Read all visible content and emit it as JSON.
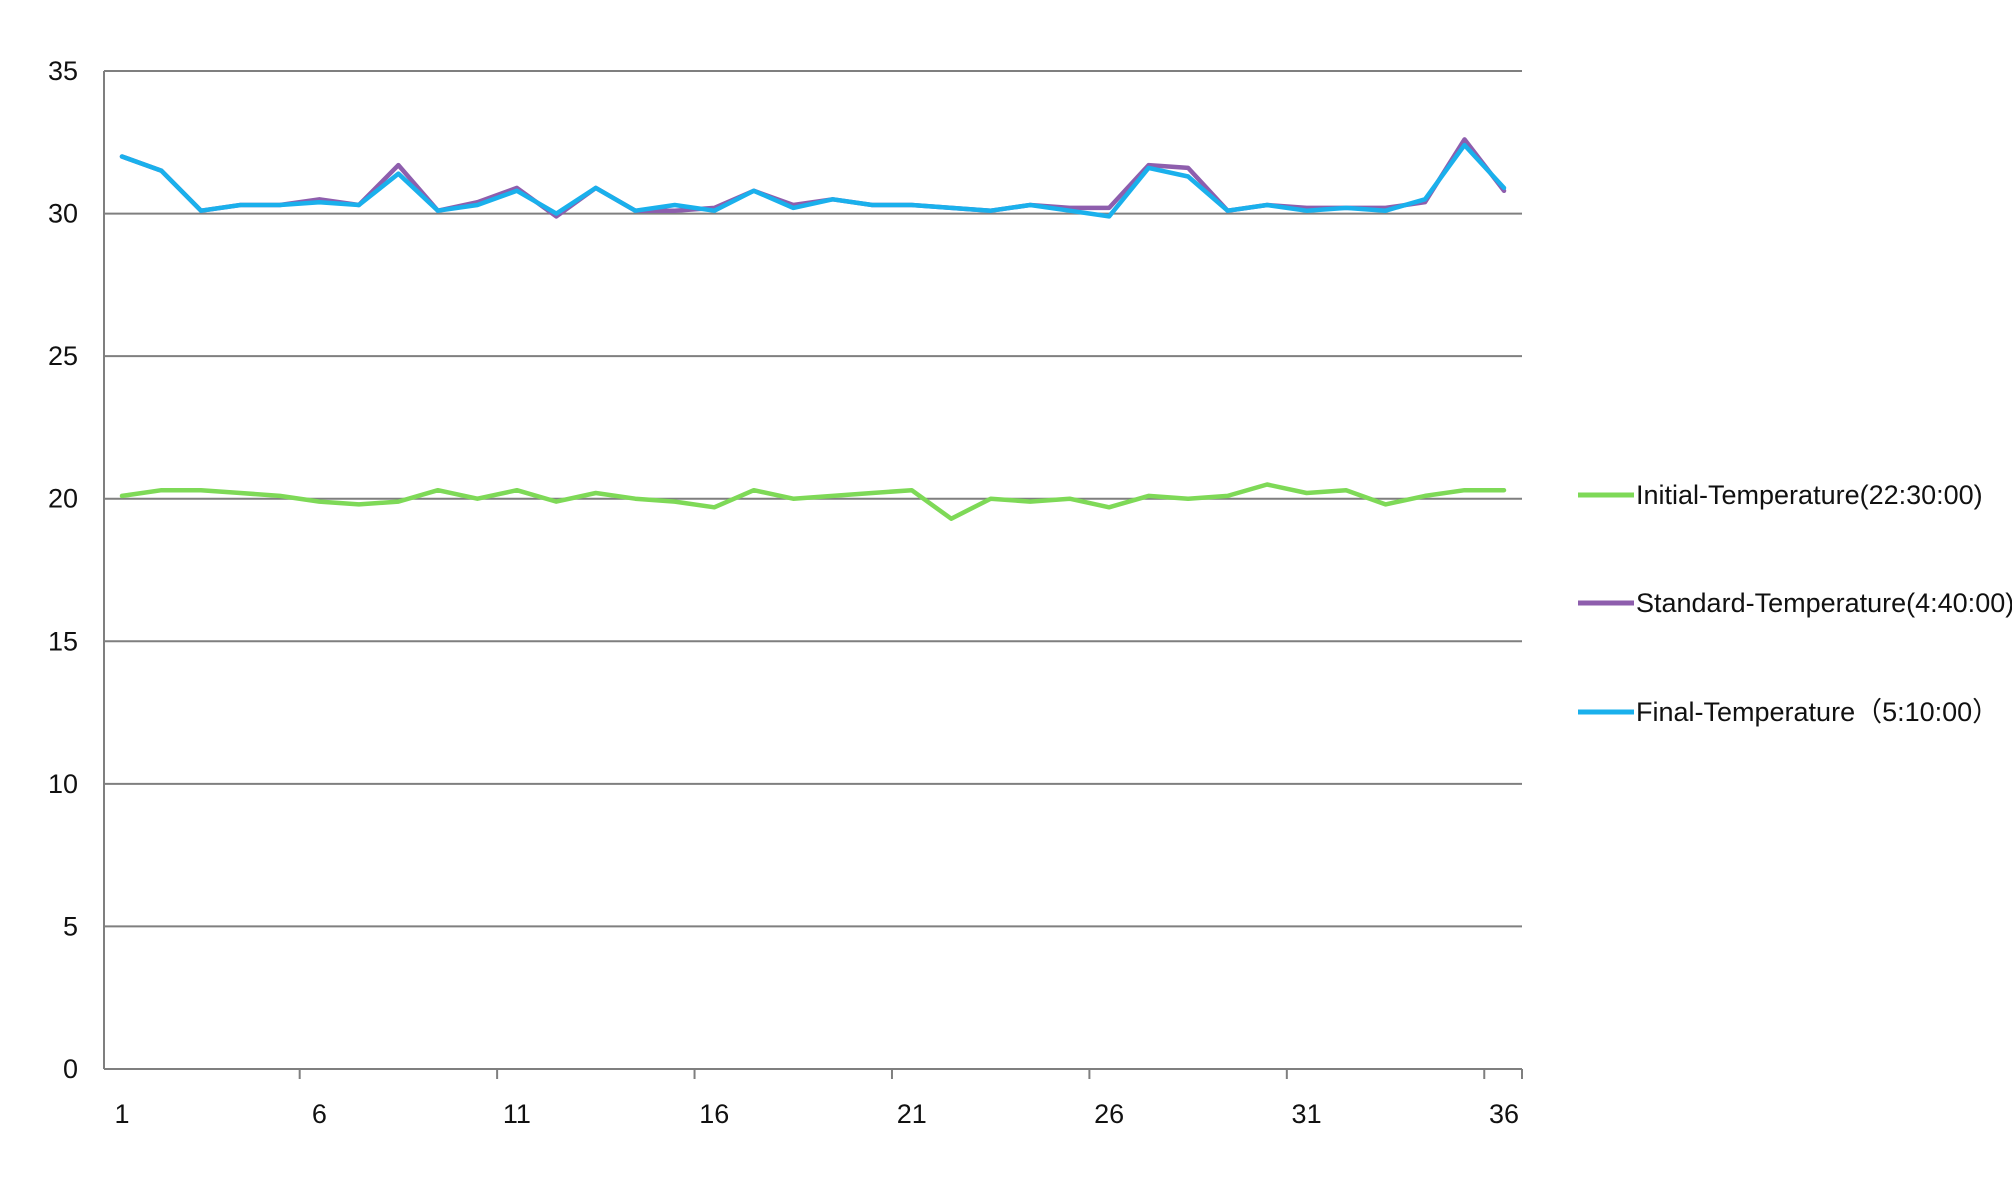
{
  "chart_data": {
    "type": "line",
    "title": "",
    "xlabel": "",
    "ylabel": "",
    "x": [
      1,
      2,
      3,
      4,
      5,
      6,
      7,
      8,
      9,
      10,
      11,
      12,
      13,
      14,
      15,
      16,
      17,
      18,
      19,
      20,
      21,
      22,
      23,
      24,
      25,
      26,
      27,
      28,
      29,
      30,
      31,
      32,
      33,
      34,
      35,
      36
    ],
    "x_tick_labels": [
      "1",
      "6",
      "11",
      "16",
      "21",
      "26",
      "31",
      "36"
    ],
    "y_tick_labels": [
      "0",
      "5",
      "10",
      "15",
      "20",
      "25",
      "30",
      "35"
    ],
    "ylim": [
      0,
      35
    ],
    "grid": "horizontal",
    "legend_position": "right",
    "series": [
      {
        "name": "Initial-Temperature(22:30:00)",
        "color": "#7ed957",
        "values": [
          20.1,
          20.3,
          20.3,
          20.2,
          20.1,
          19.9,
          19.8,
          19.9,
          20.3,
          20.0,
          20.3,
          19.9,
          20.2,
          20.0,
          19.9,
          19.7,
          20.3,
          20.0,
          20.1,
          20.2,
          20.3,
          19.3,
          20.0,
          19.9,
          20.0,
          19.7,
          20.1,
          20.0,
          20.1,
          20.5,
          20.2,
          20.3,
          19.8,
          20.1,
          20.3,
          20.3
        ]
      },
      {
        "name": "Standard-Temperature(4:40:00)",
        "color": "#8e5ead",
        "values": [
          32.0,
          31.5,
          30.1,
          30.3,
          30.3,
          30.5,
          30.3,
          31.7,
          30.1,
          30.4,
          30.9,
          29.9,
          30.9,
          30.1,
          30.1,
          30.2,
          30.8,
          30.3,
          30.5,
          30.3,
          30.3,
          30.2,
          30.1,
          30.3,
          30.2,
          30.2,
          31.7,
          31.6,
          30.1,
          30.3,
          30.2,
          30.2,
          30.2,
          30.4,
          32.6,
          30.8
        ]
      },
      {
        "name": "Final-Temperature（5:10:00）",
        "color": "#1ab0ec",
        "values": [
          32.0,
          31.5,
          30.1,
          30.3,
          30.3,
          30.4,
          30.3,
          31.4,
          30.1,
          30.3,
          30.8,
          30.0,
          30.9,
          30.1,
          30.3,
          30.1,
          30.8,
          30.2,
          30.5,
          30.3,
          30.3,
          30.2,
          30.1,
          30.3,
          30.1,
          29.9,
          31.6,
          31.3,
          30.1,
          30.3,
          30.1,
          30.2,
          30.1,
          30.5,
          32.4,
          30.9
        ]
      }
    ]
  }
}
